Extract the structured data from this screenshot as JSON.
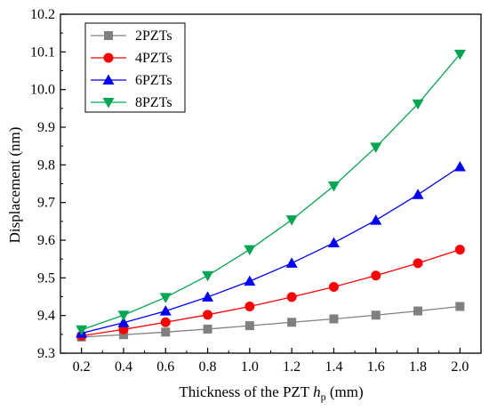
{
  "chart_data": {
    "type": "line",
    "x": [
      0.2,
      0.4,
      0.6,
      0.8,
      1.0,
      1.2,
      1.4,
      1.6,
      1.8,
      2.0
    ],
    "x_tick_labels": [
      "0.2",
      "0.4",
      "0.6",
      "0.8",
      "1.0",
      "1.2",
      "1.4",
      "1.6",
      "1.8",
      "2.0"
    ],
    "y_tick_labels": [
      "9.3",
      "9.4",
      "9.5",
      "9.6",
      "9.7",
      "9.8",
      "9.9",
      "10.0",
      "10.1",
      "10.2"
    ],
    "xlim": [
      0.1,
      2.1
    ],
    "ylim": [
      9.3,
      10.2
    ],
    "xlabel": "Thickness of the PZT ",
    "xlabel_math": "h",
    "xlabel_sub": "p",
    "xlabel_unit": " (mm)",
    "ylabel": "Displacement (nm)",
    "grid": false,
    "legend_position": "top-left",
    "series": [
      {
        "name": "2PZTs",
        "color": "#808080",
        "marker": "square",
        "values": [
          9.343,
          9.349,
          9.356,
          9.364,
          9.373,
          9.382,
          9.391,
          9.401,
          9.412,
          9.424
        ]
      },
      {
        "name": "4PZTs",
        "color": "#ff0000",
        "marker": "circle",
        "values": [
          9.346,
          9.363,
          9.382,
          9.402,
          9.424,
          9.449,
          9.476,
          9.506,
          9.539,
          9.575
        ]
      },
      {
        "name": "6PZTs",
        "color": "#0000ff",
        "marker": "triangle-up",
        "values": [
          9.353,
          9.381,
          9.412,
          9.449,
          9.491,
          9.539,
          9.593,
          9.653,
          9.721,
          9.795
        ]
      },
      {
        "name": "8PZTs",
        "color": "#00a651",
        "marker": "triangle-down",
        "values": [
          9.362,
          9.401,
          9.448,
          9.506,
          9.575,
          9.654,
          9.744,
          9.847,
          9.962,
          10.094
        ]
      }
    ]
  }
}
